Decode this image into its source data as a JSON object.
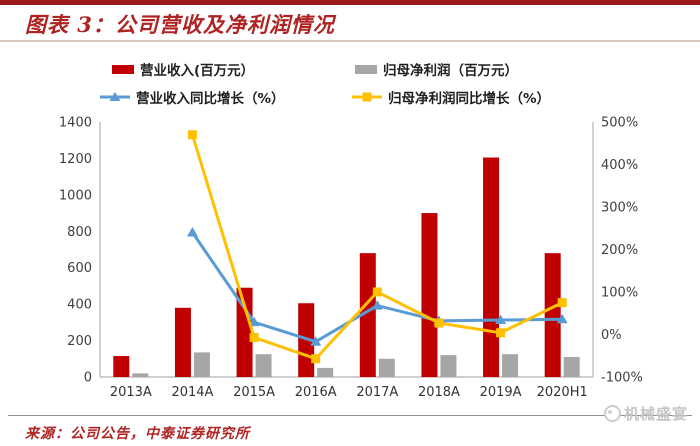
{
  "header": {
    "title": "图表 3：公司营收及净利润情况"
  },
  "legend": {
    "items": [
      {
        "label": "营业收入(百万元）",
        "type": "bar",
        "color": "#c00000"
      },
      {
        "label": "归母净利润（百万元）",
        "type": "bar",
        "color": "#a6a6a6"
      },
      {
        "label": "营业收入同比增长（%）",
        "type": "line",
        "marker": "triangle",
        "color": "#5b9bd5"
      },
      {
        "label": "归母净利润同比增长（%）",
        "type": "line",
        "marker": "square",
        "color": "#ffc000"
      }
    ]
  },
  "chart_data": {
    "type": "bar",
    "subtype": "combo-bar-line-dual-axis",
    "categories": [
      "2013A",
      "2014A",
      "2015A",
      "2016A",
      "2017A",
      "2018A",
      "2019A",
      "2020H1"
    ],
    "series": [
      {
        "name": "营业收入(百万元）",
        "type": "bar",
        "axis": "left",
        "color": "#c00000",
        "values": [
          115,
          380,
          490,
          405,
          680,
          900,
          1205,
          680
        ]
      },
      {
        "name": "归母净利润（百万元）",
        "type": "bar",
        "axis": "left",
        "color": "#a6a6a6",
        "values": [
          20,
          135,
          125,
          50,
          100,
          120,
          125,
          110
        ]
      },
      {
        "name": "营业收入同比增长（%）",
        "type": "line",
        "axis": "right",
        "color": "#5b9bd5",
        "marker": "triangle",
        "values": [
          null,
          240,
          29,
          -17,
          68,
          32,
          34,
          36
        ]
      },
      {
        "name": "归母净利润同比增长（%）",
        "type": "line",
        "axis": "right",
        "color": "#ffc000",
        "marker": "square",
        "values": [
          null,
          470,
          -7,
          -57,
          100,
          27,
          4,
          75
        ]
      }
    ],
    "left_axis": {
      "min": 0,
      "max": 1400,
      "step": 200,
      "ticks": [
        "0",
        "200",
        "400",
        "600",
        "800",
        "1000",
        "1200",
        "1400"
      ]
    },
    "right_axis": {
      "min": -100,
      "max": 500,
      "step": 100,
      "ticks": [
        "-100%",
        "0%",
        "100%",
        "200%",
        "300%",
        "400%",
        "500%"
      ]
    },
    "grid": false,
    "legend_position": "top",
    "axis_line_color": "#bfbfbf"
  },
  "footer": {
    "source": "来源：公司公告，中泰证券研究所",
    "watermark": "机械盛宴"
  },
  "colors": {
    "accent_red": "#b02323",
    "top_bar": "#9b1b1b"
  }
}
